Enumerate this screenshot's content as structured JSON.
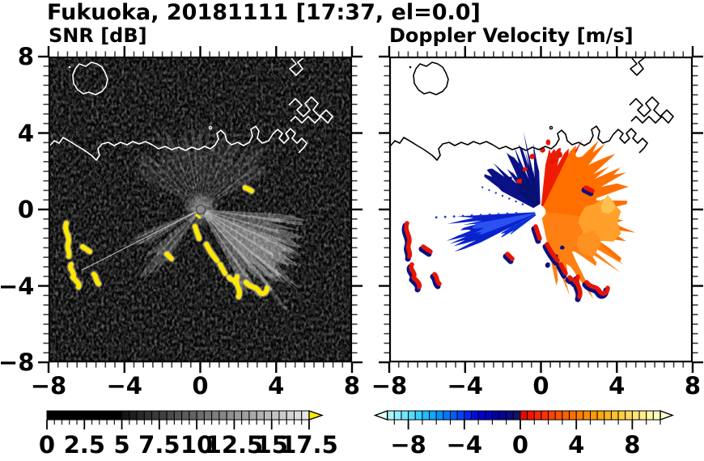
{
  "title": "Fukuoka, 20181111 [17:37, el=0.0]",
  "panels": [
    {
      "subtitle": "SNR [dB]",
      "x_tick_labels": [
        "−8",
        "−4",
        "0",
        "4",
        "8"
      ],
      "y_tick_labels": [
        "8",
        "4",
        "0",
        "−4",
        "−8"
      ],
      "x_tick_values": [
        -8,
        -4,
        0,
        4,
        8
      ],
      "y_tick_values": [
        8,
        4,
        0,
        -4,
        -8
      ],
      "x_range": [
        -8,
        8
      ],
      "y_range": [
        -8,
        8
      ],
      "minor_step": 0.5
    },
    {
      "subtitle": "Doppler Velocity [m/s]",
      "x_tick_labels": [
        "−8",
        "−4",
        "0",
        "4",
        "8"
      ],
      "y_tick_labels": [],
      "x_tick_values": [
        -8,
        -4,
        0,
        4,
        8
      ],
      "y_tick_values": [
        8,
        4,
        0,
        -4,
        -8
      ],
      "x_range": [
        -8,
        8
      ],
      "y_range": [
        -8,
        8
      ],
      "minor_step": 0.5
    }
  ],
  "colorbars": [
    {
      "name": "snr",
      "tick_labels": [
        "0",
        "2.5",
        "5",
        "7.5",
        "10",
        "12.5",
        "15",
        "17.5"
      ],
      "tick_values": [
        0,
        2.5,
        5,
        7.5,
        10,
        12.5,
        15,
        17.5
      ],
      "range": [
        0,
        17.5
      ],
      "box_step": 0.5,
      "minor_tick_step": 0.5,
      "scale": "black-to-white grayscale",
      "gray_start_value": 5,
      "over_arrow_color": "#ffe800"
    },
    {
      "name": "doppler",
      "tick_labels": [
        "−8",
        "−4",
        "0",
        "4",
        "8"
      ],
      "tick_values": [
        -8,
        -4,
        0,
        4,
        8
      ],
      "range": [
        -10,
        10
      ],
      "box_step": 0.5,
      "minor_tick_step": 1,
      "scale": "pale-cyan to navy for negative, red to cream-yellow for positive",
      "under_arrow_color": "#e6ffff",
      "over_arrow_color": "#ffffd2",
      "color_anchors": {
        "neg_far": "#d8ffff",
        "neg_near_zero": "#16165e",
        "pos_near_zero": "#e80000",
        "pos_far": "#ffffc8"
      }
    }
  ],
  "chart_data": [
    {
      "type": "heatmap",
      "title": "SNR [dB]",
      "xlabel": "",
      "ylabel": "",
      "x_range": [
        -8,
        8
      ],
      "y_range": [
        -8,
        8
      ],
      "x_ticks": [
        -8,
        -4,
        0,
        4,
        8
      ],
      "y_ticks": [
        8,
        4,
        0,
        -4,
        -8
      ],
      "colorbar": {
        "range": [
          0,
          17.5
        ],
        "ticks": [
          0,
          2.5,
          5,
          7.5,
          10,
          12.5,
          15,
          17.5
        ],
        "scale": "grayscale black to white",
        "over_color": "yellow"
      },
      "features": [
        "black low-SNR background with faint speckle noise over whole domain",
        "radar at origin (0,0) with bright gray radial beams: fan upward (N) -60 to +60 deg, bright fan ESE 95-150 deg, wedges SW 215-250 deg",
        "thin bright ray toward SW reaching (-6,-3)",
        "high-SNR yellow (>17.5 dB) echo cluster near (-7,-1.5) to (-6,-4)",
        "high-SNR yellow arc chain from (0,-1) curving to (3.5,-4)",
        "small yellow dash near (2.5,4) and (-1.7,-2.3)",
        "white coastline across upper area: island near (-6.5,6), mainland coast at y about 3.5-4.5, angular harbor piers near (2,5) to (4,7.5)"
      ]
    },
    {
      "type": "heatmap",
      "title": "Doppler Velocity [m/s]",
      "xlabel": "",
      "ylabel": "",
      "x_range": [
        -8,
        8
      ],
      "y_range": [
        -8,
        8
      ],
      "x_ticks": [
        -8,
        -4,
        0,
        4,
        8
      ],
      "y_ticks": [
        8,
        4,
        0,
        -4,
        -8
      ],
      "colorbar": {
        "range": [
          -10,
          10
        ],
        "ticks": [
          -8,
          -4,
          0,
          4,
          8
        ],
        "scale": "cyan-blue for negative, red-orange-yellow for positive"
      },
      "features": [
        "white background (no data) except around radar at origin",
        "navy negative-velocity fan N-NW of origin out to radius 2.5",
        "blue negative wedge pointing WSW out to radius 3.5 with dotted blue rays W and WNW",
        "red-orange positive fan covering NE through S, radius up to 4, brightest red at NE edge",
        "white circle at radar origin",
        "red echoes rimmed navy near (-7,-1.5) to (-6,-4) and along arc (0,-1) to (3.5,-4)",
        "black coastline identical to SNR panel"
      ]
    }
  ]
}
